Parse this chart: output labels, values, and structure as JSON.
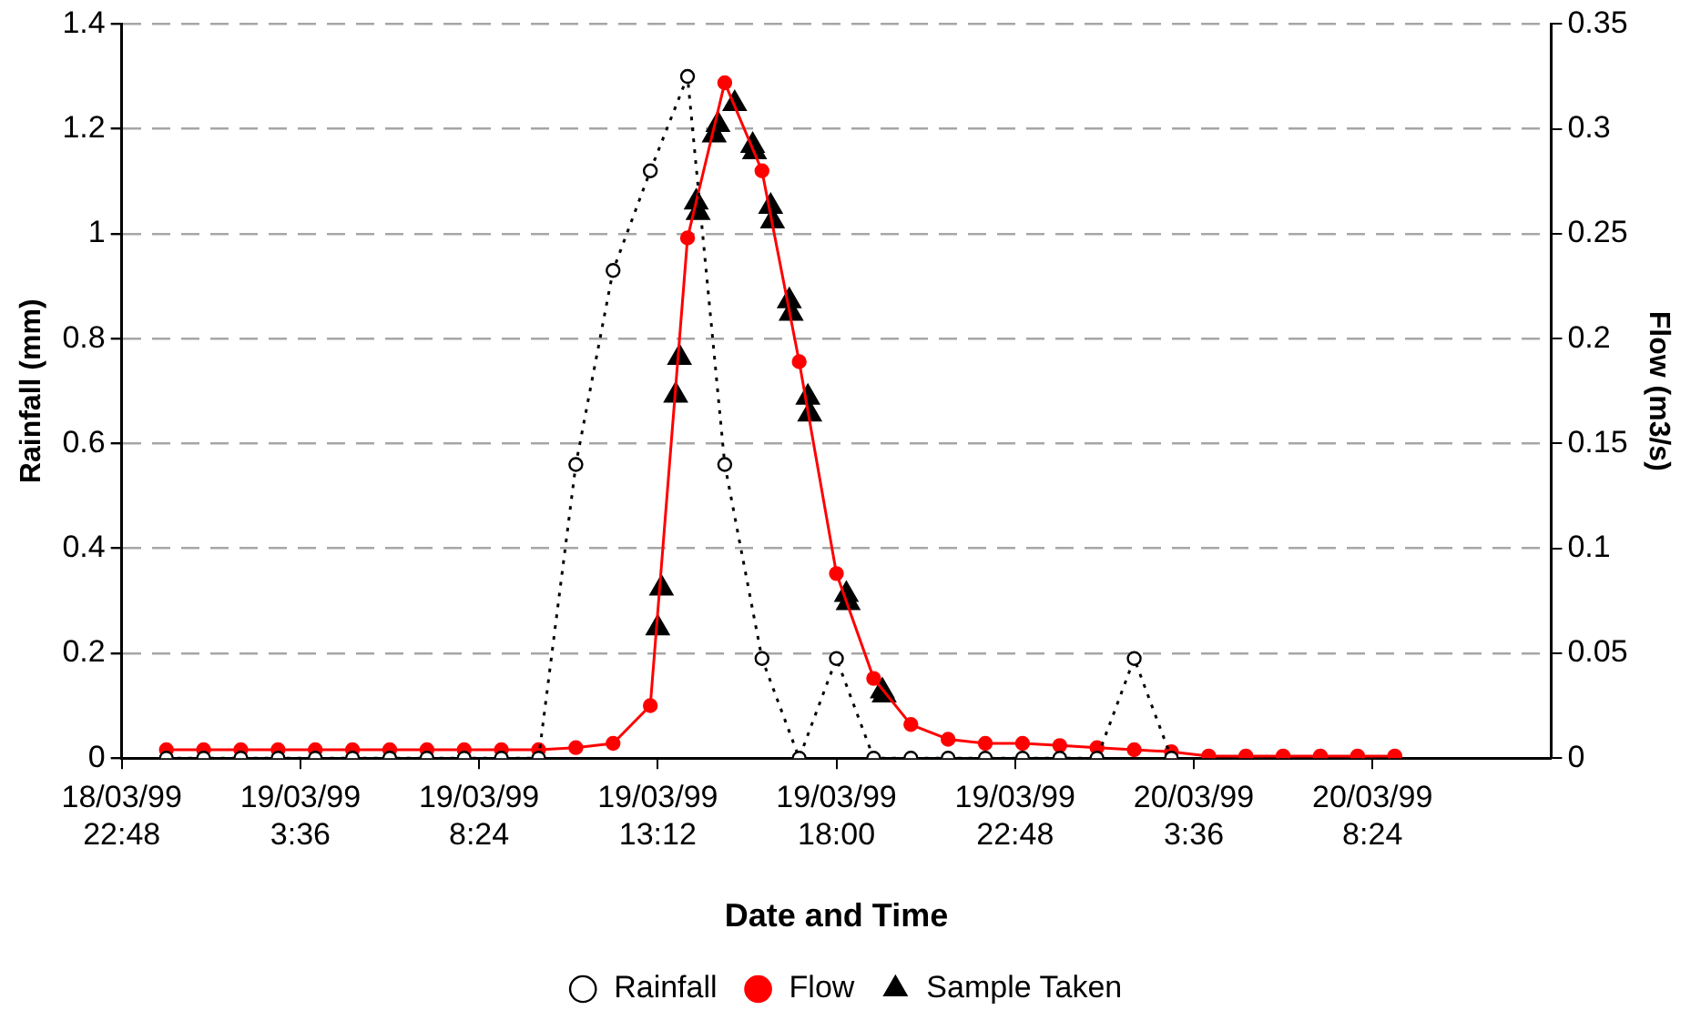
{
  "chart_data": {
    "type": "line",
    "xlabel": "Date and Time",
    "ylabel": "Rainfall (mm)",
    "y2label": "Flow (m3/s)",
    "xlim": [
      "1999-03-18T22:48",
      "1999-03-20T13:12"
    ],
    "xticks": [
      {
        "value": "1999-03-18T22:48",
        "label": "18/03/99\n22:48"
      },
      {
        "value": "1999-03-19T03:36",
        "label": "19/03/99\n3:36"
      },
      {
        "value": "1999-03-19T08:24",
        "label": "19/03/99\n8:24"
      },
      {
        "value": "1999-03-19T13:12",
        "label": "19/03/99\n13:12"
      },
      {
        "value": "1999-03-19T18:00",
        "label": "19/03/99\n18:00"
      },
      {
        "value": "1999-03-19T22:48",
        "label": "19/03/99\n22:48"
      },
      {
        "value": "1999-03-20T03:36",
        "label": "20/03/99\n3:36"
      },
      {
        "value": "1999-03-20T08:24",
        "label": "20/03/99\n8:24"
      }
    ],
    "ylim": [
      0,
      1.4
    ],
    "yticks": [
      0,
      0.2,
      0.4,
      0.6,
      0.8,
      1,
      1.2,
      1.4
    ],
    "y2lim": [
      0,
      0.35
    ],
    "y2ticks": [
      0,
      0.05,
      0.1,
      0.15,
      0.2,
      0.25,
      0.3,
      0.35
    ],
    "grid": "y",
    "legend": "bottom",
    "series": [
      {
        "name": "Rainfall",
        "color": "#000000",
        "marker": "circle",
        "line_style": "dotted",
        "x": [
          "1999-03-19T00:00",
          "1999-03-19T01:00",
          "1999-03-19T02:00",
          "1999-03-19T03:00",
          "1999-03-19T04:00",
          "1999-03-19T05:00",
          "1999-03-19T06:00",
          "1999-03-19T07:00",
          "1999-03-19T08:00",
          "1999-03-19T09:00",
          "1999-03-19T10:00",
          "1999-03-19T11:00",
          "1999-03-19T12:00",
          "1999-03-19T13:00",
          "1999-03-19T14:00",
          "1999-03-19T15:00",
          "1999-03-19T16:00",
          "1999-03-19T17:00",
          "1999-03-19T18:00",
          "1999-03-19T19:00",
          "1999-03-19T20:00",
          "1999-03-19T21:00",
          "1999-03-19T22:00",
          "1999-03-19T23:00",
          "1999-03-20T00:00",
          "1999-03-20T01:00",
          "1999-03-20T02:00",
          "1999-03-20T03:00"
        ],
        "values": [
          0,
          0,
          0,
          0,
          0,
          0,
          0,
          0,
          0,
          0,
          0,
          0.56,
          0.93,
          1.12,
          1.3,
          0.56,
          0.19,
          0,
          0.19,
          0,
          0,
          0,
          0,
          0,
          0,
          0,
          0.19,
          0
        ]
      },
      {
        "name": "Flow",
        "axis": "y2",
        "color": "#ff0000",
        "marker": "circle",
        "line_style": "solid",
        "x": [
          "1999-03-19T00:00",
          "1999-03-19T01:00",
          "1999-03-19T02:00",
          "1999-03-19T03:00",
          "1999-03-19T04:00",
          "1999-03-19T05:00",
          "1999-03-19T06:00",
          "1999-03-19T07:00",
          "1999-03-19T08:00",
          "1999-03-19T09:00",
          "1999-03-19T10:00",
          "1999-03-19T11:00",
          "1999-03-19T12:00",
          "1999-03-19T13:00",
          "1999-03-19T14:00",
          "1999-03-19T15:00",
          "1999-03-19T16:00",
          "1999-03-19T17:00",
          "1999-03-19T18:00",
          "1999-03-19T19:00",
          "1999-03-19T20:00",
          "1999-03-19T21:00",
          "1999-03-19T22:00",
          "1999-03-19T23:00",
          "1999-03-20T00:00",
          "1999-03-20T01:00",
          "1999-03-20T02:00",
          "1999-03-20T03:00",
          "1999-03-20T04:00",
          "1999-03-20T05:00",
          "1999-03-20T06:00",
          "1999-03-20T07:00",
          "1999-03-20T08:00",
          "1999-03-20T09:00"
        ],
        "values": [
          0.004,
          0.004,
          0.004,
          0.004,
          0.004,
          0.004,
          0.004,
          0.004,
          0.004,
          0.004,
          0.004,
          0.005,
          0.007,
          0.025,
          0.248,
          0.322,
          0.28,
          0.189,
          0.088,
          0.038,
          0.016,
          0.009,
          0.007,
          0.007,
          0.006,
          0.005,
          0.004,
          0.003,
          0.001,
          0.001,
          0.001,
          0.001,
          0.001,
          0.001
        ]
      },
      {
        "name": "Sample Taken",
        "type": "scatter",
        "axis": "y2",
        "color": "#000000",
        "marker": "triangle",
        "x": [
          "1999-03-19T13:12",
          "1999-03-19T13:18",
          "1999-03-19T13:41",
          "1999-03-19T13:47",
          "1999-03-19T14:14",
          "1999-03-19T14:17",
          "1999-03-19T14:43",
          "1999-03-19T14:49",
          "1999-03-19T15:16",
          "1999-03-19T15:45",
          "1999-03-19T15:48",
          "1999-03-19T16:14",
          "1999-03-19T16:17",
          "1999-03-19T16:44",
          "1999-03-19T16:47",
          "1999-03-19T17:14",
          "1999-03-19T17:17",
          "1999-03-19T18:16",
          "1999-03-19T18:19",
          "1999-03-19T19:14",
          "1999-03-19T19:17"
        ],
        "values": [
          0.062,
          0.081,
          0.173,
          0.191,
          0.265,
          0.26,
          0.297,
          0.302,
          0.312,
          0.292,
          0.289,
          0.263,
          0.256,
          0.218,
          0.212,
          0.172,
          0.164,
          0.078,
          0.074,
          0.032,
          0.03
        ]
      }
    ]
  }
}
